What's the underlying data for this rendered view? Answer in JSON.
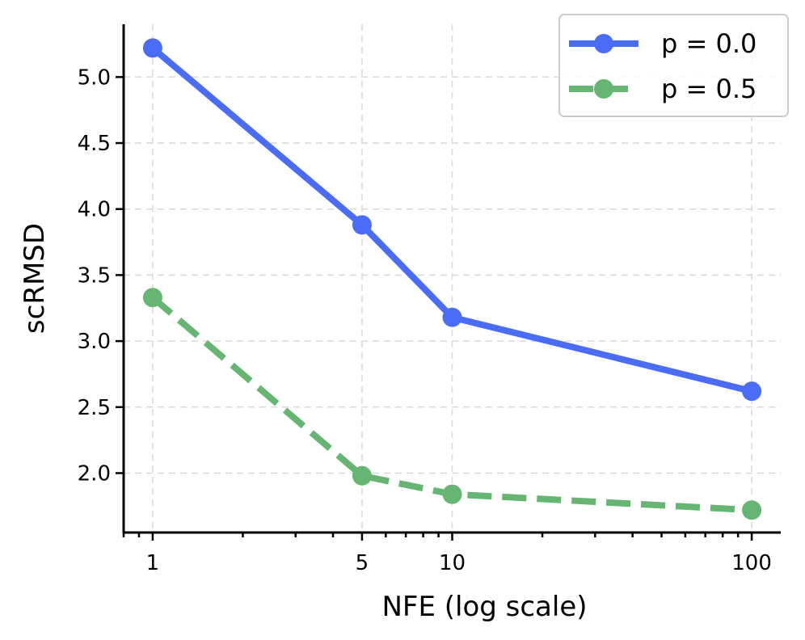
{
  "chart_data": {
    "type": "line",
    "xscale": "log",
    "xlabel": "NFE (log scale)",
    "ylabel": "scRMSD",
    "xlim": [
      0.8,
      125
    ],
    "ylim": [
      1.55,
      5.4
    ],
    "grid": true,
    "legend_position": "top-right",
    "x_ticks": [
      1,
      5,
      10,
      100
    ],
    "x_tick_labels": [
      "1",
      "5",
      "10",
      "100"
    ],
    "y_ticks": [
      2.0,
      2.5,
      3.0,
      3.5,
      4.0,
      4.5,
      5.0
    ],
    "y_tick_labels": [
      "2.0",
      "2.5",
      "3.0",
      "3.5",
      "4.0",
      "4.5",
      "5.0"
    ],
    "x": [
      1,
      5,
      10,
      100
    ],
    "series": [
      {
        "name": "p = 0.0",
        "values": [
          5.22,
          3.88,
          3.18,
          2.62
        ],
        "color": "#4a6cf7",
        "dash": "solid"
      },
      {
        "name": "p = 0.5",
        "values": [
          3.33,
          1.98,
          1.84,
          1.72
        ],
        "color": "#66b573",
        "dash": "dashed"
      }
    ]
  }
}
